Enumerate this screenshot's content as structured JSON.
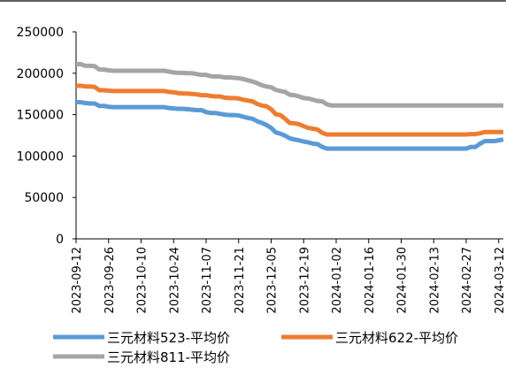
{
  "chart_data": {
    "type": "line",
    "xlabel": "",
    "ylabel": "",
    "ylim": [
      0,
      250000
    ],
    "yticks": [
      0,
      50000,
      100000,
      150000,
      200000,
      250000
    ],
    "ytick_labels": [
      "0",
      "50000",
      "100000",
      "150000",
      "200000",
      "250000"
    ],
    "x": [
      "2023-09-12",
      "2023-09-14",
      "2023-09-16",
      "2023-09-18",
      "2023-09-20",
      "2023-09-22",
      "2023-09-24",
      "2023-09-26",
      "2023-09-28",
      "2023-09-30",
      "2023-10-02",
      "2023-10-04",
      "2023-10-06",
      "2023-10-08",
      "2023-10-10",
      "2023-10-12",
      "2023-10-14",
      "2023-10-16",
      "2023-10-18",
      "2023-10-20",
      "2023-10-22",
      "2023-10-24",
      "2023-10-26",
      "2023-10-28",
      "2023-10-30",
      "2023-11-01",
      "2023-11-03",
      "2023-11-05",
      "2023-11-07",
      "2023-11-09",
      "2023-11-11",
      "2023-11-13",
      "2023-11-15",
      "2023-11-17",
      "2023-11-19",
      "2023-11-21",
      "2023-11-23",
      "2023-11-25",
      "2023-11-27",
      "2023-11-29",
      "2023-12-01",
      "2023-12-03",
      "2023-12-05",
      "2023-12-07",
      "2023-12-09",
      "2023-12-11",
      "2023-12-13",
      "2023-12-15",
      "2023-12-17",
      "2023-12-19",
      "2023-12-21",
      "2023-12-23",
      "2023-12-25",
      "2023-12-27",
      "2023-12-29",
      "2023-12-31",
      "2024-01-02",
      "2024-01-04",
      "2024-01-06",
      "2024-01-08",
      "2024-01-10",
      "2024-01-12",
      "2024-01-14",
      "2024-01-16",
      "2024-01-18",
      "2024-01-20",
      "2024-01-22",
      "2024-01-24",
      "2024-01-26",
      "2024-01-28",
      "2024-01-30",
      "2024-02-01",
      "2024-02-03",
      "2024-02-05",
      "2024-02-07",
      "2024-02-09",
      "2024-02-11",
      "2024-02-13",
      "2024-02-15",
      "2024-02-17",
      "2024-02-19",
      "2024-02-21",
      "2024-02-23",
      "2024-02-25",
      "2024-02-27",
      "2024-02-29",
      "2024-03-02",
      "2024-03-04",
      "2024-03-06",
      "2024-03-08",
      "2024-03-10",
      "2024-03-12",
      "2024-03-14"
    ],
    "x_tick_labels": [
      "2023-09-12",
      "2023-09-26",
      "2023-10-10",
      "2023-10-24",
      "2023-11-07",
      "2023-11-21",
      "2023-12-05",
      "2023-12-19",
      "2024-01-02",
      "2024-01-16",
      "2024-01-30",
      "2024-02-13",
      "2024-02-27",
      "2024-03-12"
    ],
    "x_tick_index": [
      0,
      7,
      14,
      21,
      28,
      35,
      42,
      49,
      56,
      63,
      70,
      77,
      84,
      91
    ],
    "series": [
      {
        "name": "三元材料523-平均价",
        "color": "#5B9BD5",
        "values": [
          165000,
          165000,
          164000,
          163500,
          163500,
          160500,
          160500,
          159500,
          159000,
          159000,
          159000,
          159000,
          159000,
          159000,
          159000,
          159000,
          159000,
          159000,
          159000,
          159000,
          158000,
          157500,
          157000,
          157000,
          156500,
          156000,
          155500,
          155500,
          153000,
          152000,
          152000,
          151000,
          150000,
          149500,
          149500,
          149000,
          147500,
          146000,
          145000,
          142000,
          140000,
          137500,
          134000,
          128500,
          127000,
          124500,
          121500,
          120000,
          119000,
          117500,
          116500,
          115000,
          114500,
          111000,
          109000,
          109000,
          109000,
          109000,
          109000,
          109000,
          109000,
          109000,
          109000,
          109000,
          109000,
          109000,
          109000,
          109000,
          109000,
          109000,
          109000,
          109000,
          109000,
          109000,
          109000,
          109000,
          109000,
          109000,
          109000,
          109000,
          109000,
          109000,
          109000,
          109000,
          109000,
          111000,
          111000,
          115000,
          118000,
          118000,
          118000,
          119000,
          120000
        ]
      },
      {
        "name": "三元材料622-平均价",
        "color": "#ED7D31",
        "values": [
          185000,
          185000,
          184000,
          184000,
          183500,
          179500,
          179500,
          179000,
          178500,
          178500,
          178500,
          178500,
          178500,
          178500,
          178500,
          178500,
          178500,
          178500,
          178500,
          178500,
          177500,
          177000,
          176000,
          175500,
          175500,
          175000,
          174500,
          173500,
          173500,
          172500,
          172000,
          172000,
          170500,
          170000,
          170000,
          169500,
          168000,
          167000,
          166000,
          163000,
          161000,
          160000,
          156500,
          150500,
          149500,
          145000,
          140000,
          139500,
          138500,
          136000,
          134000,
          133000,
          132000,
          128000,
          126000,
          126000,
          126000,
          126000,
          126000,
          126000,
          126000,
          126000,
          126000,
          126000,
          126000,
          126000,
          126000,
          126000,
          126000,
          126000,
          126000,
          126000,
          126000,
          126000,
          126000,
          126000,
          126000,
          126000,
          126000,
          126000,
          126000,
          126000,
          126000,
          126000,
          126000,
          126500,
          126500,
          127500,
          129000,
          129000,
          129000,
          129000,
          129000
        ]
      },
      {
        "name": "三元材料811-平均价",
        "color": "#A5A5A5",
        "values": [
          211000,
          211000,
          209000,
          209000,
          208500,
          204500,
          204500,
          203500,
          203000,
          203000,
          203000,
          203000,
          203000,
          203000,
          203000,
          203000,
          203000,
          203000,
          203000,
          203000,
          202000,
          201000,
          200500,
          200500,
          200000,
          200000,
          199000,
          198000,
          198000,
          196500,
          196000,
          196000,
          195000,
          195000,
          194500,
          194000,
          193000,
          191500,
          190000,
          188000,
          185500,
          184000,
          183000,
          180000,
          178500,
          177500,
          174000,
          173500,
          172000,
          170000,
          169500,
          168000,
          166500,
          166000,
          162500,
          161000,
          161000,
          161000,
          161000,
          161000,
          161000,
          161000,
          161000,
          161000,
          161000,
          161000,
          161000,
          161000,
          161000,
          161000,
          161000,
          161000,
          161000,
          161000,
          161000,
          161000,
          161000,
          161000,
          161000,
          161000,
          161000,
          161000,
          161000,
          161000,
          161000,
          161000,
          161000,
          161000,
          161000,
          161000,
          161000,
          161000,
          161000
        ]
      }
    ],
    "grid": false,
    "legend_position": "bottom"
  }
}
